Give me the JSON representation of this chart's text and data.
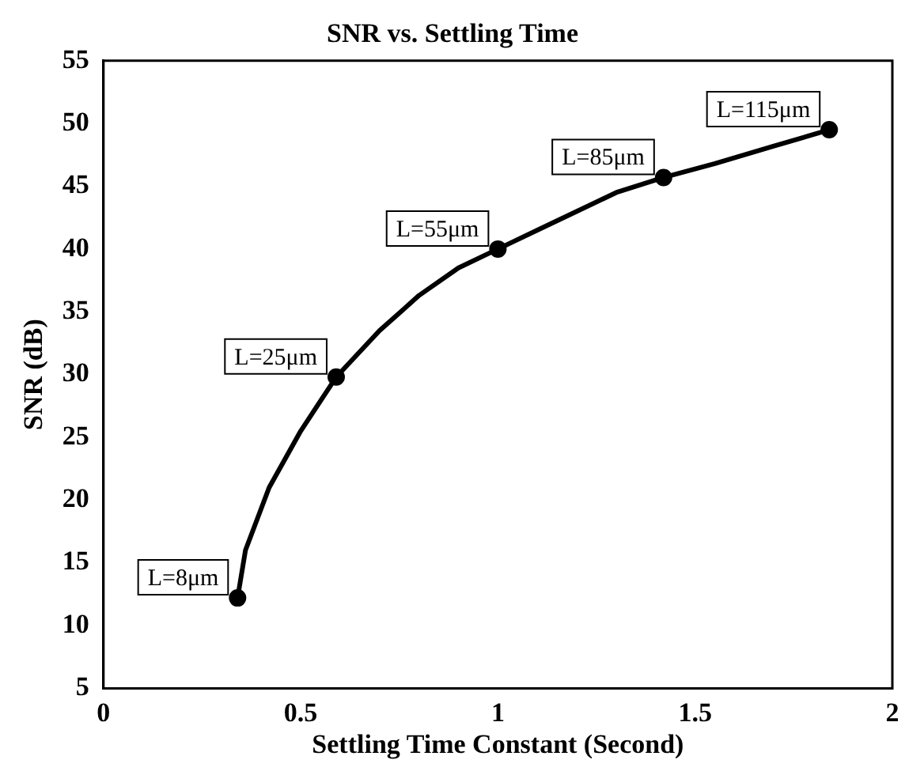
{
  "chart_data": {
    "type": "line",
    "title": "SNR vs. Settling Time",
    "xlabel": "Settling Time Constant (Second)",
    "ylabel": "SNR (dB)",
    "xlim": [
      0,
      2
    ],
    "xticks": [
      0,
      0.5,
      1,
      1.5,
      2
    ],
    "ylim": [
      5,
      55
    ],
    "yticks": [
      5,
      10,
      15,
      20,
      25,
      30,
      35,
      40,
      45,
      50,
      55
    ],
    "grid": false,
    "legend": false,
    "series": [
      {
        "color": "#000000",
        "marker": "none",
        "x": [
          0.34,
          0.36,
          0.42,
          0.5,
          0.59,
          0.7,
          0.8,
          0.9,
          1.0,
          1.1,
          1.2,
          1.3,
          1.42,
          1.55,
          1.7,
          1.84
        ],
        "values": [
          12.2,
          16,
          21,
          25.5,
          29.8,
          33.5,
          36.3,
          38.5,
          40,
          41.5,
          43,
          44.5,
          45.7,
          46.8,
          48.2,
          49.5
        ]
      },
      {
        "type": "scatter",
        "color": "#000000",
        "marker": "circle",
        "x": [
          0.34,
          0.59,
          1.0,
          1.42,
          1.84
        ],
        "values": [
          12.2,
          29.8,
          40,
          45.7,
          49.5
        ]
      }
    ],
    "annotations": [
      {
        "text": "L=8μm",
        "x": 0.34,
        "y": 12.2
      },
      {
        "text": "L=25μm",
        "x": 0.59,
        "y": 29.8
      },
      {
        "text": "L=55μm",
        "x": 1.0,
        "y": 40
      },
      {
        "text": "L=85μm",
        "x": 1.42,
        "y": 45.7
      },
      {
        "text": "L=115μm",
        "x": 1.84,
        "y": 49.5
      }
    ]
  }
}
